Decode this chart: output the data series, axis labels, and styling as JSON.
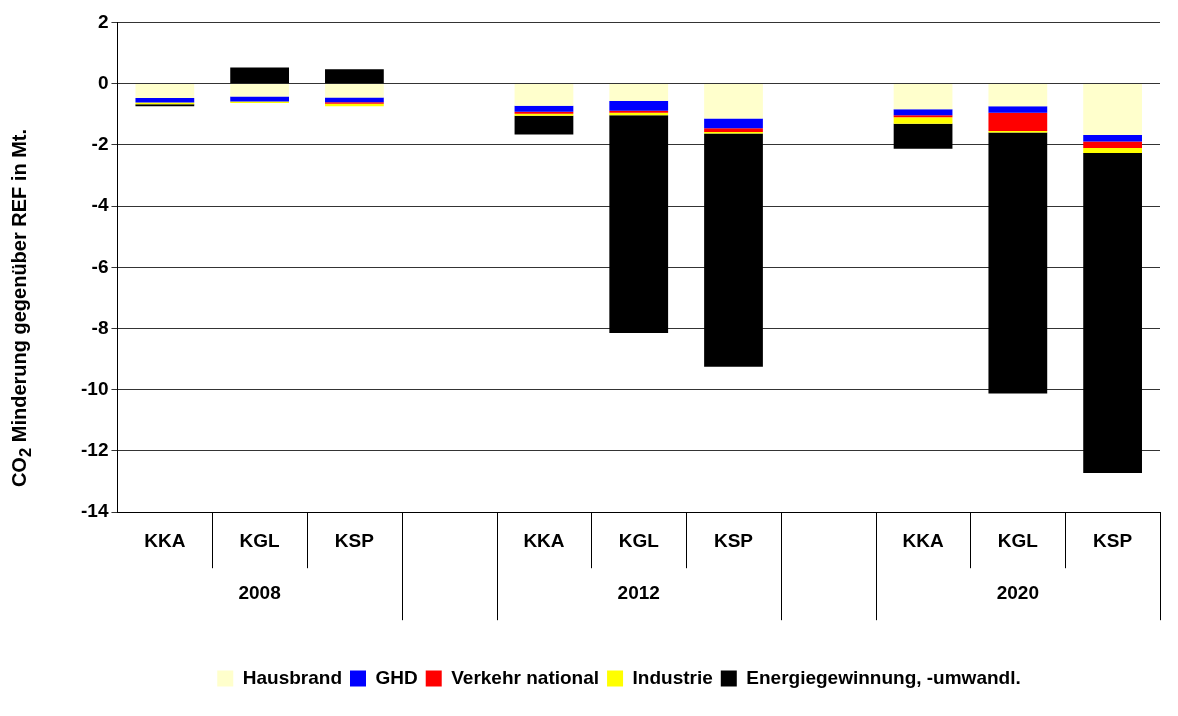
{
  "chart_data": {
    "type": "bar",
    "stacked": true,
    "ylabel": "CO$_{2}$ Minderung gegenüber REF in Mt.",
    "categories": [
      "KKA",
      "KGL",
      "KSP",
      null,
      "KKA",
      "KGL",
      "KSP",
      null,
      "KKA",
      "KGL",
      "KSP"
    ],
    "annotations": [
      "2008",
      "2012",
      "2020"
    ],
    "series": [
      {
        "name": "Hausbrand",
        "color": "#ffffcc",
        "values": [
          -0.47,
          -0.42,
          -0.45,
          null,
          -0.72,
          -0.57,
          -1.14,
          null,
          -0.84,
          -0.74,
          -1.68
        ]
      },
      {
        "name": "GHD",
        "color": "#0000ff",
        "values": [
          -0.15,
          -0.16,
          -0.16,
          null,
          -0.2,
          -0.32,
          -0.32,
          null,
          -0.19,
          -0.21,
          -0.21
        ]
      },
      {
        "name": "Verkehr national",
        "color": "#ff0000",
        "values": [
          null,
          null,
          -0.05,
          null,
          -0.06,
          -0.06,
          -0.12,
          null,
          -0.07,
          -0.6,
          -0.21
        ]
      },
      {
        "name": "Industrie",
        "color": "#ffff00",
        "values": [
          -0.05,
          -0.05,
          -0.08,
          null,
          -0.07,
          -0.08,
          -0.05,
          null,
          -0.21,
          -0.05,
          -0.17
        ]
      },
      {
        "name": "Energiegewinnung, -umwandl.",
        "color": "#000000",
        "values": [
          -0.07,
          0.53,
          0.47,
          null,
          -0.61,
          -7.12,
          -7.62,
          null,
          -0.82,
          -8.52,
          -10.45
        ]
      }
    ],
    "ylim": [
      -14,
      2
    ],
    "yticks": [
      -14,
      -12,
      -10,
      -8,
      -6,
      -4,
      -2,
      0,
      2
    ],
    "grid": "y",
    "legend": "bottom"
  }
}
